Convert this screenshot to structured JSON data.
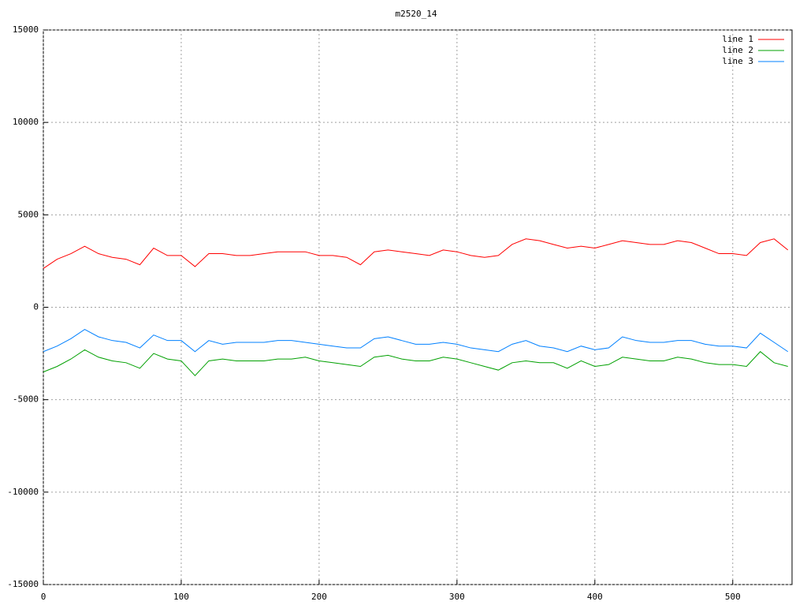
{
  "chart_data": {
    "type": "line",
    "title": "m2520_14",
    "x": [
      0,
      10,
      20,
      30,
      40,
      50,
      60,
      70,
      80,
      90,
      100,
      110,
      120,
      130,
      140,
      150,
      160,
      170,
      180,
      190,
      200,
      210,
      220,
      230,
      240,
      250,
      260,
      270,
      280,
      290,
      300,
      310,
      320,
      330,
      340,
      350,
      360,
      370,
      380,
      390,
      400,
      410,
      420,
      430,
      440,
      450,
      460,
      470,
      480,
      490,
      500,
      510,
      520,
      530,
      540
    ],
    "series": [
      {
        "name": "line 1",
        "color": "#ff0000",
        "values": [
          2100,
          2600,
          2900,
          3300,
          2900,
          2700,
          2600,
          2300,
          3200,
          2800,
          2800,
          2200,
          2900,
          2900,
          2800,
          2800,
          2900,
          3000,
          3000,
          3000,
          2800,
          2800,
          2700,
          2300,
          3000,
          3100,
          3000,
          2900,
          2800,
          3100,
          3000,
          2800,
          2700,
          2800,
          3400,
          3700,
          3600,
          3400,
          3200,
          3300,
          3200,
          3400,
          3600,
          3500,
          3400,
          3400,
          3600,
          3500,
          3200,
          2900,
          2900,
          2800,
          3500,
          3700,
          3100
        ]
      },
      {
        "name": "line 2",
        "color": "#00a000",
        "values": [
          -3500,
          -3200,
          -2800,
          -2300,
          -2700,
          -2900,
          -3000,
          -3300,
          -2500,
          -2800,
          -2900,
          -3700,
          -2900,
          -2800,
          -2900,
          -2900,
          -2900,
          -2800,
          -2800,
          -2700,
          -2900,
          -3000,
          -3100,
          -3200,
          -2700,
          -2600,
          -2800,
          -2900,
          -2900,
          -2700,
          -2800,
          -3000,
          -3200,
          -3400,
          -3000,
          -2900,
          -3000,
          -3000,
          -3300,
          -2900,
          -3200,
          -3100,
          -2700,
          -2800,
          -2900,
          -2900,
          -2700,
          -2800,
          -3000,
          -3100,
          -3100,
          -3200,
          -2400,
          -3000,
          -3200
        ]
      },
      {
        "name": "line 3",
        "color": "#0080ff",
        "values": [
          -2400,
          -2100,
          -1700,
          -1200,
          -1600,
          -1800,
          -1900,
          -2200,
          -1500,
          -1800,
          -1800,
          -2400,
          -1800,
          -2000,
          -1900,
          -1900,
          -1900,
          -1800,
          -1800,
          -1900,
          -2000,
          -2100,
          -2200,
          -2200,
          -1700,
          -1600,
          -1800,
          -2000,
          -2000,
          -1900,
          -2000,
          -2200,
          -2300,
          -2400,
          -2000,
          -1800,
          -2100,
          -2200,
          -2400,
          -2100,
          -2300,
          -2200,
          -1600,
          -1800,
          -1900,
          -1900,
          -1800,
          -1800,
          -2000,
          -2100,
          -2100,
          -2200,
          -1400,
          -1900,
          -2400
        ]
      }
    ],
    "xlim": [
      0,
      543
    ],
    "xticks": [
      0,
      100,
      200,
      300,
      400,
      500
    ],
    "ylim": [
      -15000,
      15000
    ],
    "yticks": [
      -15000,
      -10000,
      -5000,
      0,
      5000,
      10000,
      15000
    ],
    "grid": true,
    "legend": "top-right"
  }
}
